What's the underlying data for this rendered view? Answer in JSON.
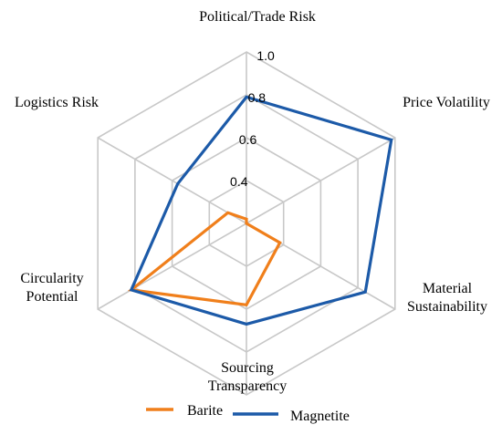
{
  "chart_data": {
    "type": "radar",
    "axes": [
      {
        "label_lines": [
          "Political/Trade Risk"
        ]
      },
      {
        "label_lines": [
          "Price Volatility"
        ]
      },
      {
        "label_lines": [
          "Material",
          "Sustainability"
        ]
      },
      {
        "label_lines": [
          "Sourcing",
          "Transparency"
        ]
      },
      {
        "label_lines": [
          "Circularity",
          "Potential"
        ]
      },
      {
        "label_lines": [
          "Logistics Risk"
        ]
      }
    ],
    "rlim": [
      0.2,
      1.0
    ],
    "ticks": [
      0.4,
      0.6,
      0.8,
      1.0
    ],
    "tick_labels": [
      "0.4",
      "0.6",
      "0.8",
      "1.0"
    ],
    "grid": true,
    "legend_position": "bottom",
    "series": [
      {
        "name": "Barite",
        "color": "#f07f1b",
        "values": [
          0.22,
          0.2,
          0.38,
          0.58,
          0.82,
          0.3
        ]
      },
      {
        "name": "Magnetite",
        "color": "#1c5aa8",
        "values": [
          0.79,
          0.98,
          0.84,
          0.67,
          0.82,
          0.57
        ]
      }
    ]
  }
}
